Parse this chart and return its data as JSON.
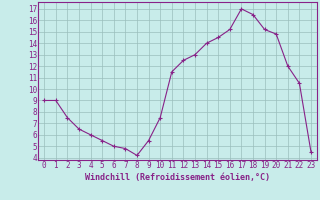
{
  "x": [
    0,
    1,
    2,
    3,
    4,
    5,
    6,
    7,
    8,
    9,
    10,
    11,
    12,
    13,
    14,
    15,
    16,
    17,
    18,
    19,
    20,
    21,
    22,
    23
  ],
  "y": [
    9,
    9,
    7.5,
    6.5,
    6,
    5.5,
    5,
    4.8,
    4.2,
    5.5,
    7.5,
    11.5,
    12.5,
    13,
    14,
    14.5,
    15.2,
    17,
    16.5,
    15.2,
    14.8,
    12,
    10.5,
    4.5
  ],
  "line_color": "#882288",
  "marker": "+",
  "markersize": 3,
  "linewidth": 0.8,
  "bg_color": "#c8ecea",
  "grid_color": "#9bbfbd",
  "xlabel": "Windchill (Refroidissement éolien,°C)",
  "xlabel_color": "#882288",
  "tick_color": "#882288",
  "xlim": [
    -0.5,
    23.5
  ],
  "ylim": [
    3.8,
    17.6
  ],
  "yticks": [
    4,
    5,
    6,
    7,
    8,
    9,
    10,
    11,
    12,
    13,
    14,
    15,
    16,
    17
  ],
  "xticks": [
    0,
    1,
    2,
    3,
    4,
    5,
    6,
    7,
    8,
    9,
    10,
    11,
    12,
    13,
    14,
    15,
    16,
    17,
    18,
    19,
    20,
    21,
    22,
    23
  ],
  "spine_color": "#882288",
  "tick_fontsize": 5.5,
  "xlabel_fontsize": 6.0
}
